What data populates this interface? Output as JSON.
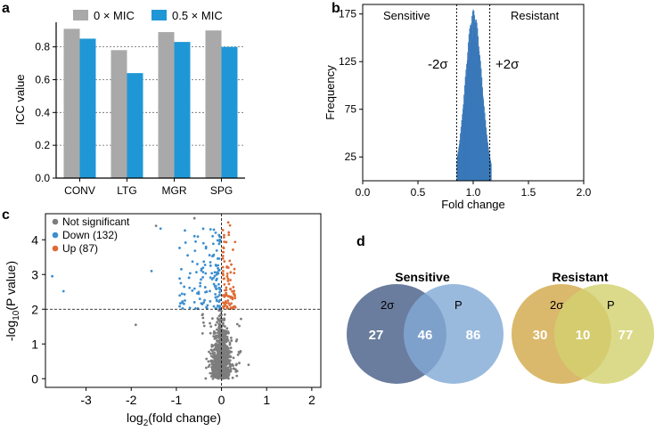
{
  "panels": {
    "a": "a",
    "b": "b",
    "c": "c",
    "d": "d"
  },
  "colors": {
    "gray": "#a9a9aa",
    "blue": "#1f97d6",
    "hist": "#3a78b9",
    "ns": "#7d7d7d",
    "down": "#3d8ecf",
    "up": "#dd6a35",
    "vennSensA": "#5d7296",
    "vennSensB": "#82aad5",
    "vennResA": "#d8b35f",
    "vennResB": "#d3d170"
  },
  "chart_data": [
    {
      "id": "a",
      "type": "bar",
      "title": "",
      "categories": [
        "CONV",
        "LTG",
        "MGR",
        "SPG"
      ],
      "series": [
        {
          "name": "0 × MIC",
          "values": [
            0.91,
            0.78,
            0.89,
            0.9
          ]
        },
        {
          "name": "0.5 × MIC",
          "values": [
            0.85,
            0.64,
            0.83,
            0.8
          ]
        }
      ],
      "xlabel": "",
      "ylabel": "ICC value",
      "ylim": [
        0,
        0.95
      ],
      "yticks": [
        0.0,
        0.2,
        0.4,
        0.6,
        0.8
      ],
      "ytick_labels": [
        "0.0",
        "0.2",
        "0.4",
        "0.6",
        "0.8"
      ],
      "grid": "horizontal dotted",
      "legend": "top"
    },
    {
      "id": "b",
      "type": "histogram",
      "xlabel": "Fold change",
      "ylabel": "Frequency",
      "xlim": [
        0,
        2
      ],
      "ylim": [
        0,
        185
      ],
      "xticks": [
        0.0,
        0.5,
        1.0,
        1.5,
        2.0
      ],
      "xtick_labels": [
        "0.0",
        "0.5",
        "1.0",
        "1.5",
        "2.0"
      ],
      "yticks": [
        25,
        75,
        125,
        175
      ],
      "ytick_labels": [
        "25",
        "75",
        "125",
        "175"
      ],
      "distribution": {
        "mean": 1.0,
        "sd": 0.075,
        "peak": 180,
        "range": [
          0.85,
          1.16
        ]
      },
      "thresholds": [
        {
          "value": 0.85,
          "label": "-2σ"
        },
        {
          "value": 1.15,
          "label": "+2σ"
        }
      ],
      "region_labels": [
        "Sensitive",
        "Resistant"
      ]
    },
    {
      "id": "c",
      "type": "scatter",
      "xlabel_main": "log",
      "xlabel_sub": "2",
      "xlabel_tail": "(fold change)",
      "ylabel_main": "-log",
      "ylabel_sub": "10",
      "ylabel_tail": "(P value)",
      "xlim": [
        -3.9,
        2.2
      ],
      "ylim": [
        -0.25,
        4.75
      ],
      "xticks": [
        -3,
        -2,
        -1,
        0,
        1,
        2
      ],
      "xtick_labels": [
        "-3",
        "-2",
        "-1",
        "0",
        "1",
        "2"
      ],
      "yticks": [
        0,
        1,
        2,
        3,
        4
      ],
      "ytick_labels": [
        "0",
        "1",
        "2",
        "3",
        "4"
      ],
      "thresholds": {
        "x": 0,
        "y": 2
      },
      "legend": [
        {
          "label": "Not significant",
          "color": "#7d7d7d"
        },
        {
          "label": "Down (132)",
          "color": "#3d8ecf"
        },
        {
          "label": "Up (87)",
          "color": "#dd6a35"
        }
      ],
      "counts": {
        "down": 132,
        "up": 87
      },
      "outliers": [
        {
          "x": -3.75,
          "y": 2.95,
          "group": "down"
        },
        {
          "x": -3.5,
          "y": 2.52,
          "group": "down"
        },
        {
          "x": -1.9,
          "y": 1.55,
          "group": "ns"
        },
        {
          "x": -1.55,
          "y": 3.1,
          "group": "down"
        },
        {
          "x": -1.45,
          "y": 4.4,
          "group": "ns"
        },
        {
          "x": -1.35,
          "y": 4.32,
          "group": "down"
        },
        {
          "x": -0.9,
          "y": 2.75,
          "group": "down"
        },
        {
          "x": -0.75,
          "y": 3.55,
          "group": "down"
        },
        {
          "x": -0.6,
          "y": 4.62,
          "group": "ns"
        },
        {
          "x": -0.4,
          "y": 3.9,
          "group": "down"
        },
        {
          "x": 0.15,
          "y": 4.5,
          "group": "up"
        },
        {
          "x": 0.6,
          "y": 0.4,
          "group": "ns"
        }
      ]
    },
    {
      "id": "d",
      "type": "venn",
      "sets": [
        {
          "title": "Sensitive",
          "labelA": "2σ",
          "labelB": "P",
          "onlyA": 27,
          "both": 46,
          "onlyB": 86
        },
        {
          "title": "Resistant",
          "labelA": "2σ",
          "labelB": "P",
          "onlyA": 30,
          "both": 10,
          "onlyB": 77
        }
      ]
    }
  ]
}
